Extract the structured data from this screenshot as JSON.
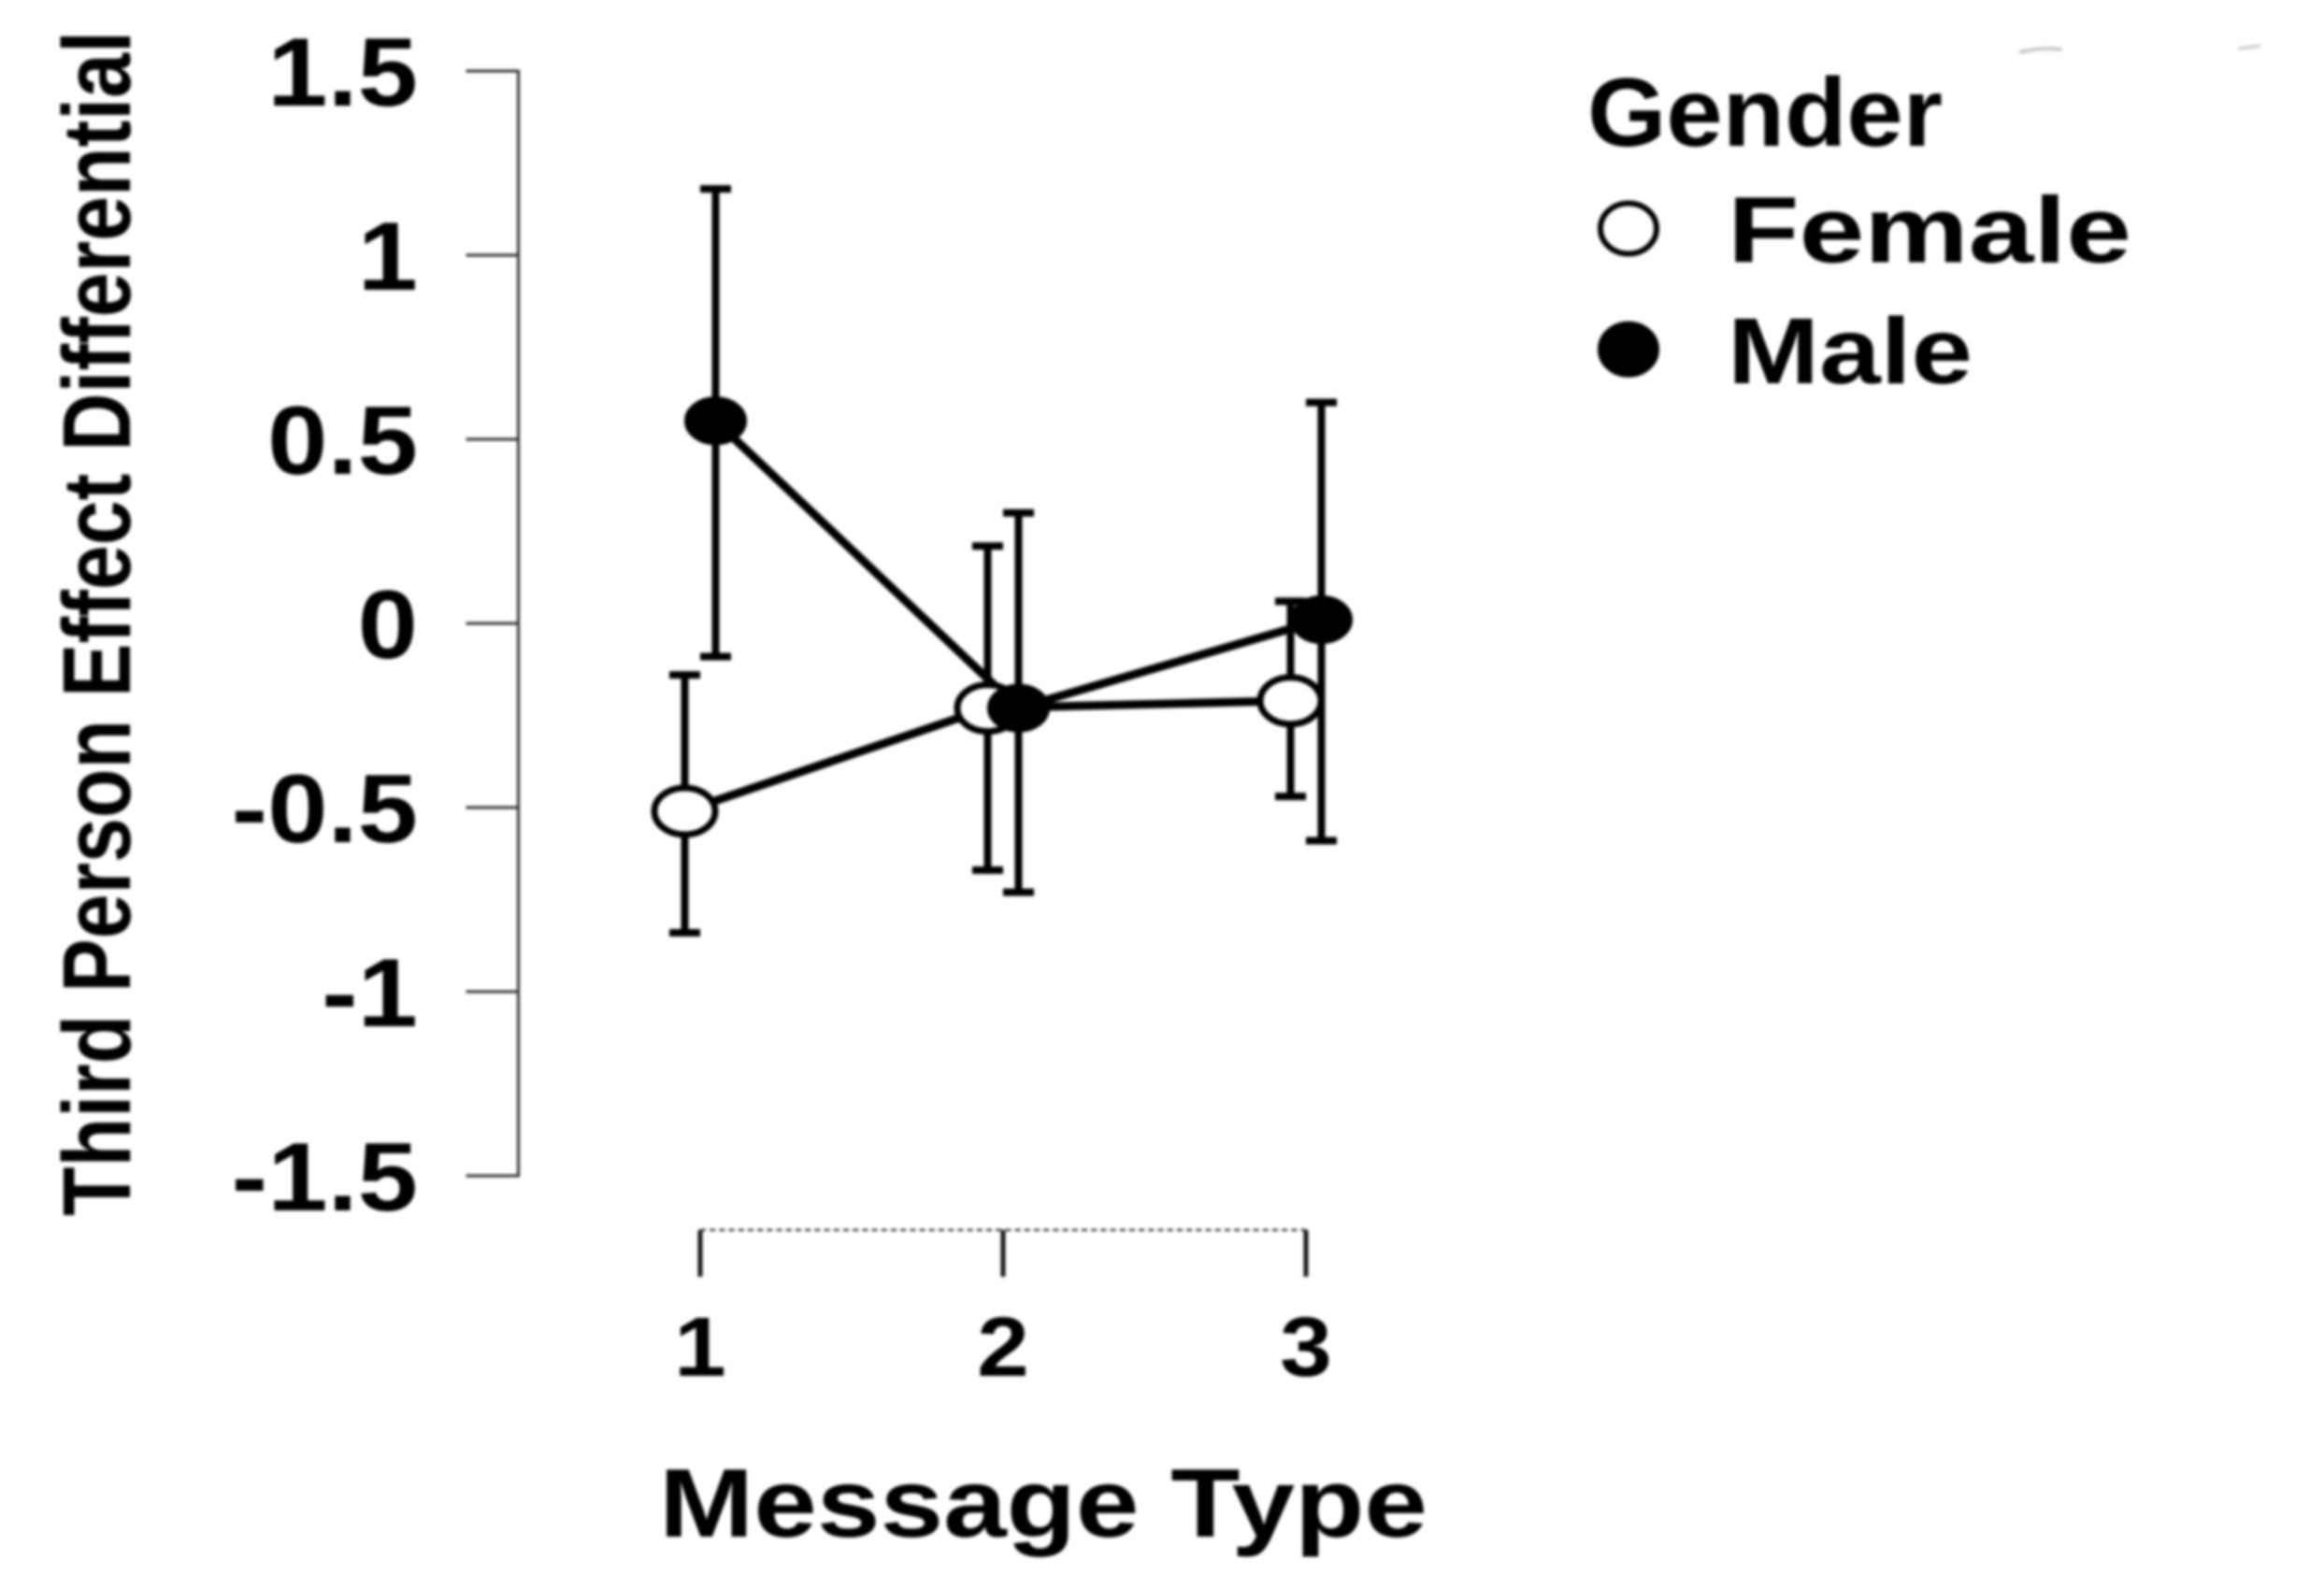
{
  "chart_data": {
    "type": "line",
    "title": "",
    "xlabel": "Message Type",
    "ylabel": "Third Person Effect Differential",
    "x_categories": [
      "1",
      "2",
      "3"
    ],
    "ylim": [
      -1.5,
      1.5
    ],
    "yticks": [
      1.5,
      1.0,
      0.5,
      0.0,
      -0.5,
      -1.0,
      -1.5
    ],
    "ytick_labels": [
      "1.5",
      "1",
      "0.5",
      "0",
      "-0.5",
      "-1",
      "-1.5"
    ],
    "grid": false,
    "error_bars": true,
    "legend": {
      "title": "Gender",
      "position": "top-right",
      "entries": [
        {
          "label": "Female",
          "marker": "open-circle"
        },
        {
          "label": "Male",
          "marker": "filled-circle"
        }
      ]
    },
    "series": [
      {
        "name": "Female",
        "marker": "open-circle",
        "color": "#000000",
        "means": [
          -0.51,
          -0.23,
          -0.21
        ],
        "ci_low": [
          -0.84,
          -0.67,
          -0.47
        ],
        "ci_high": [
          -0.14,
          0.21,
          0.06
        ]
      },
      {
        "name": "Male",
        "marker": "filled-circle",
        "color": "#000000",
        "means": [
          0.55,
          -0.23,
          0.01
        ],
        "ci_low": [
          -0.09,
          -0.73,
          -0.59
        ],
        "ci_high": [
          1.18,
          0.3,
          0.6
        ]
      }
    ],
    "colors": {
      "foreground": "#000000",
      "background": "#ffffff"
    }
  }
}
